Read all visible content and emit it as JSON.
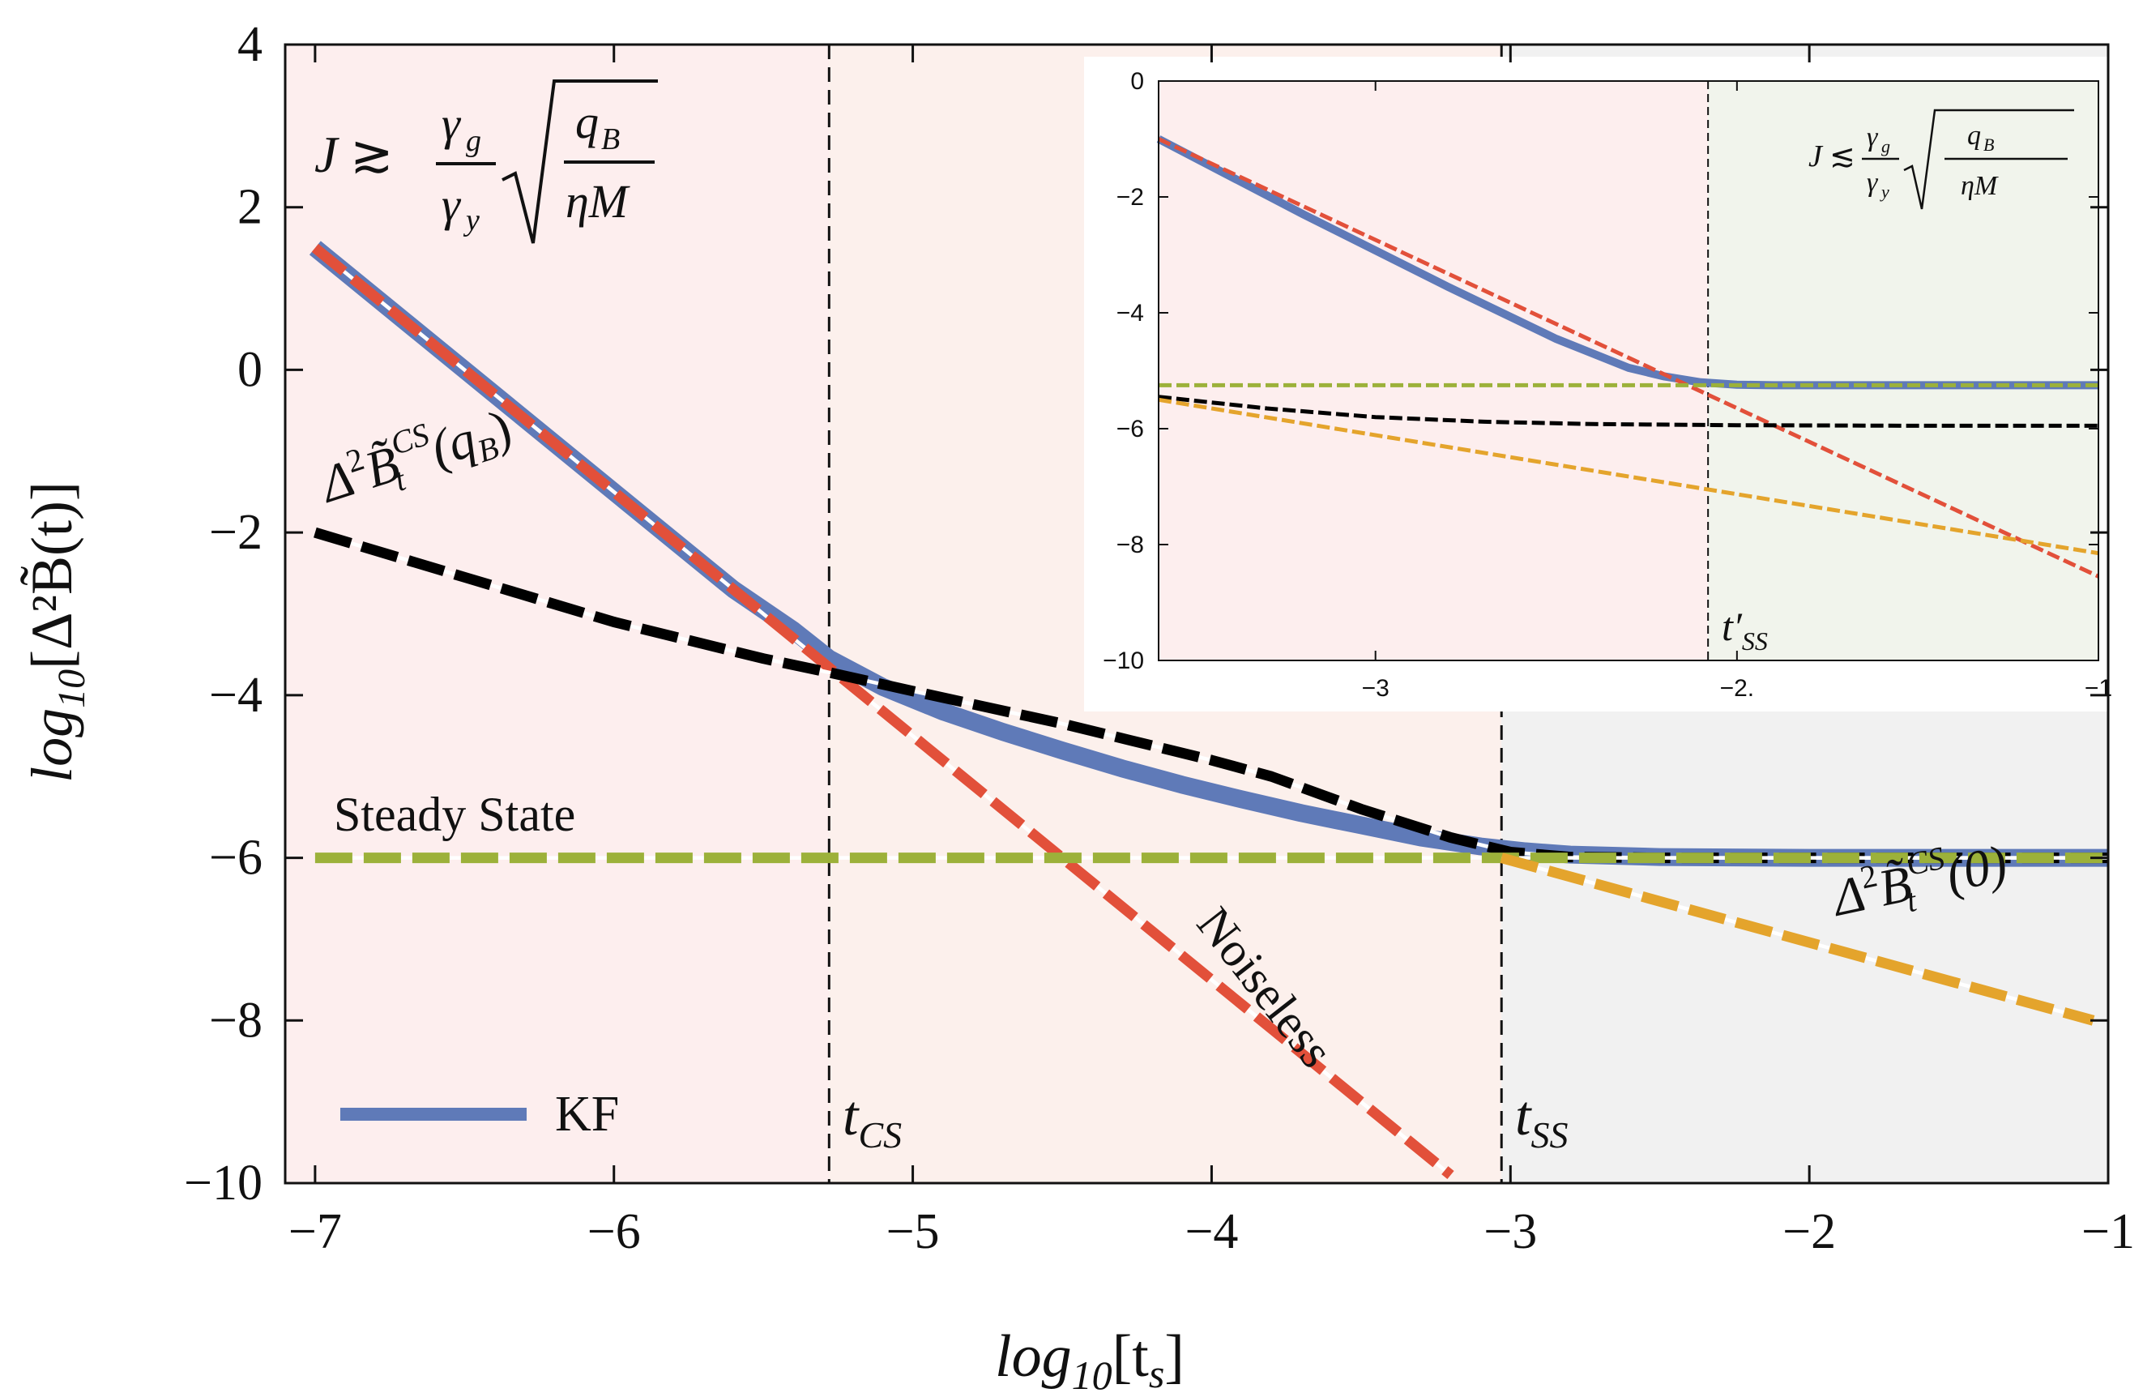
{
  "chart_data": [
    {
      "type": "line",
      "name": "main",
      "xlabel": "log₁₀[tₛ]",
      "ylabel": "log₁₀[Δ²B̃(t)]",
      "xlim": [
        -7.1,
        -1
      ],
      "ylim": [
        -10,
        4
      ],
      "xticks": [
        -7,
        -6,
        -5,
        -4,
        -3,
        -2,
        -1
      ],
      "yticks": [
        4,
        2,
        0,
        -2,
        -4,
        -6,
        -8,
        -10
      ],
      "xtick_labels": [
        "−7",
        "−6",
        "−5",
        "−4",
        "−3",
        "−2",
        "−1"
      ],
      "ytick_labels": [
        "4",
        "2",
        "0",
        "−2",
        "−4",
        "−6",
        "−8",
        "−10"
      ],
      "regions": [
        {
          "x0": -7.1,
          "x1": -5.28,
          "color": "#fdeeee"
        },
        {
          "x0": -5.28,
          "x1": -3.03,
          "color": "#fcf0ec"
        },
        {
          "x0": -3.03,
          "x1": -1.0,
          "color": "#f1f1f1"
        }
      ],
      "vlines": [
        {
          "x": -5.28,
          "label": "t_CS",
          "label_main": "t",
          "label_sub": "CS"
        },
        {
          "x": -3.03,
          "label": "t_SS",
          "label_main": "t",
          "label_sub": "SS"
        }
      ],
      "series": [
        {
          "name": "KF",
          "color": "#5f7ab8",
          "style": "solid",
          "x": [
            -7,
            -6.5,
            -6,
            -5.6,
            -5.4,
            -5.28,
            -5.1,
            -4.9,
            -4.7,
            -4.5,
            -4.3,
            -4.1,
            -3.9,
            -3.7,
            -3.5,
            -3.3,
            -3.1,
            -2.95,
            -2.8,
            -2.5,
            -2.0,
            -1.5,
            -1.0
          ],
          "y": [
            1.5,
            0.0,
            -1.5,
            -2.7,
            -3.2,
            -3.55,
            -3.9,
            -4.2,
            -4.45,
            -4.68,
            -4.9,
            -5.1,
            -5.28,
            -5.45,
            -5.6,
            -5.75,
            -5.86,
            -5.92,
            -5.96,
            -5.99,
            -6.0,
            -6.0,
            -6.0
          ]
        },
        {
          "name": "Noiseless",
          "color": "#e2503a",
          "style": "dashed",
          "x": [
            -7,
            -3.2
          ],
          "y": [
            1.5,
            -9.9
          ]
        },
        {
          "name": "Δ²B̃_t^CS(q_B)",
          "color": "#000000",
          "style": "dashed",
          "x": [
            -7,
            -6.5,
            -6,
            -5.5,
            -5.28,
            -5,
            -4.5,
            -4,
            -3.8,
            -3.5,
            -3.2,
            -3.0,
            -2.8,
            -2.5,
            -2.0,
            -1.5,
            -1.0
          ],
          "y": [
            -2.0,
            -2.55,
            -3.1,
            -3.55,
            -3.72,
            -3.95,
            -4.35,
            -4.8,
            -5.0,
            -5.4,
            -5.75,
            -5.93,
            -5.99,
            -6.0,
            -6.0,
            -6.0,
            -6.0
          ]
        },
        {
          "name": "Steady State",
          "color": "#9cb13a",
          "style": "dashed",
          "x": [
            -7,
            -1
          ],
          "y": [
            -6,
            -6
          ]
        },
        {
          "name": "Δ²B̃_t^CS(0)",
          "color": "#e4a42c",
          "style": "dashed",
          "x": [
            -3.03,
            -1.05
          ],
          "y": [
            -6.0,
            -8.0
          ]
        }
      ],
      "annotations": [
        {
          "text": "Steady State"
        },
        {
          "text": "Noiseless"
        },
        {
          "text": "KF"
        },
        {
          "text": "Δ²B̃_t^CS(q_B)"
        },
        {
          "text": "Δ²B̃_t^CS(0)"
        },
        {
          "text": "J ≳ (γ_g/γ_y)√(q_B/ηM)"
        }
      ]
    },
    {
      "type": "line",
      "name": "inset",
      "xlim": [
        -3.6,
        -1
      ],
      "ylim": [
        -10,
        0
      ],
      "xticks": [
        -3,
        -2,
        -1
      ],
      "yticks": [
        0,
        -2,
        -4,
        -6,
        -8,
        -10
      ],
      "xtick_labels": [
        "−3",
        "−2.",
        "−1"
      ],
      "ytick_labels": [
        "0",
        "−2",
        "−4",
        "−6",
        "−8",
        "−10"
      ],
      "regions": [
        {
          "x0": -3.6,
          "x1": -2.08,
          "color": "#fdeeee"
        },
        {
          "x0": -2.08,
          "x1": -1.0,
          "color": "#f1f4ec"
        }
      ],
      "vlines": [
        {
          "x": -2.08,
          "label": "t′_SS",
          "label_main": "t′",
          "label_sub": "SS"
        }
      ],
      "series": [
        {
          "name": "KF",
          "color": "#5f7ab8",
          "style": "solid",
          "x": [
            -3.6,
            -3.2,
            -2.8,
            -2.5,
            -2.3,
            -2.2,
            -2.1,
            -2.0,
            -1.9,
            -1.5,
            -1.0
          ],
          "y": [
            -1.0,
            -2.3,
            -3.55,
            -4.45,
            -4.95,
            -5.1,
            -5.2,
            -5.24,
            -5.25,
            -5.25,
            -5.25
          ]
        },
        {
          "name": "Noiseless",
          "color": "#e2503a",
          "style": "dashed",
          "x": [
            -3.6,
            -1.0
          ],
          "y": [
            -1.0,
            -8.55
          ]
        },
        {
          "name": "Steady State",
          "color": "#9cb13a",
          "style": "dashed",
          "x": [
            -3.6,
            -1.0
          ],
          "y": [
            -5.25,
            -5.25
          ]
        },
        {
          "name": "Δ²B̃_t^CS(q_B)",
          "color": "#000000",
          "style": "dashed",
          "x": [
            -3.6,
            -3.3,
            -3.0,
            -2.7,
            -2.4,
            -2.0,
            -1.5,
            -1.0
          ],
          "y": [
            -5.45,
            -5.65,
            -5.8,
            -5.88,
            -5.92,
            -5.94,
            -5.95,
            -5.95
          ]
        },
        {
          "name": "Δ²B̃_t^CS(0)",
          "color": "#e4a42c",
          "style": "dashed",
          "x": [
            -3.6,
            -1.0
          ],
          "y": [
            -5.5,
            -8.15
          ]
        }
      ],
      "annotations": [
        {
          "text": "J ≲ (γ_g/γ_y)√(q_B/ηM)"
        }
      ]
    }
  ],
  "labels": {
    "xlabel_main": "log",
    "xlabel_sub": "10",
    "xlabel_arg": "[t",
    "xlabel_arg_sub": "s",
    "xlabel_close": "]",
    "ylabel_main": "log",
    "ylabel_sub": "10",
    "ylabel_arg": "[Δ²B̃(t)]",
    "steady_state": "Steady State",
    "noiseless": "Noiseless",
    "legend_kf": "KF",
    "cs_qb_delta": "Δ",
    "cs_qb_sup2": "2",
    "cs_qb_B": "B̃",
    "cs_qb_sub": "t",
    "cs_qb_sup": "CS",
    "cs_qb_arg": "(q",
    "cs_qb_arg_sub": "B",
    "cs_qb_close": ")",
    "cs_0_delta": "Δ",
    "cs_0_sup2": "2",
    "cs_0_B": "B̃",
    "cs_0_sub": "t",
    "cs_0_sup": "CS",
    "cs_0_arg": "(0)",
    "formula_main_J": "J",
    "formula_main_rel": "≳",
    "formula_inset_J": "J",
    "formula_inset_rel": "≲",
    "formula_gamma_g": "γ",
    "formula_gamma_g_sub": "g",
    "formula_gamma_y": "γ",
    "formula_gamma_y_sub": "y",
    "formula_q": "q",
    "formula_q_sub": "B",
    "formula_den": "ηM"
  }
}
